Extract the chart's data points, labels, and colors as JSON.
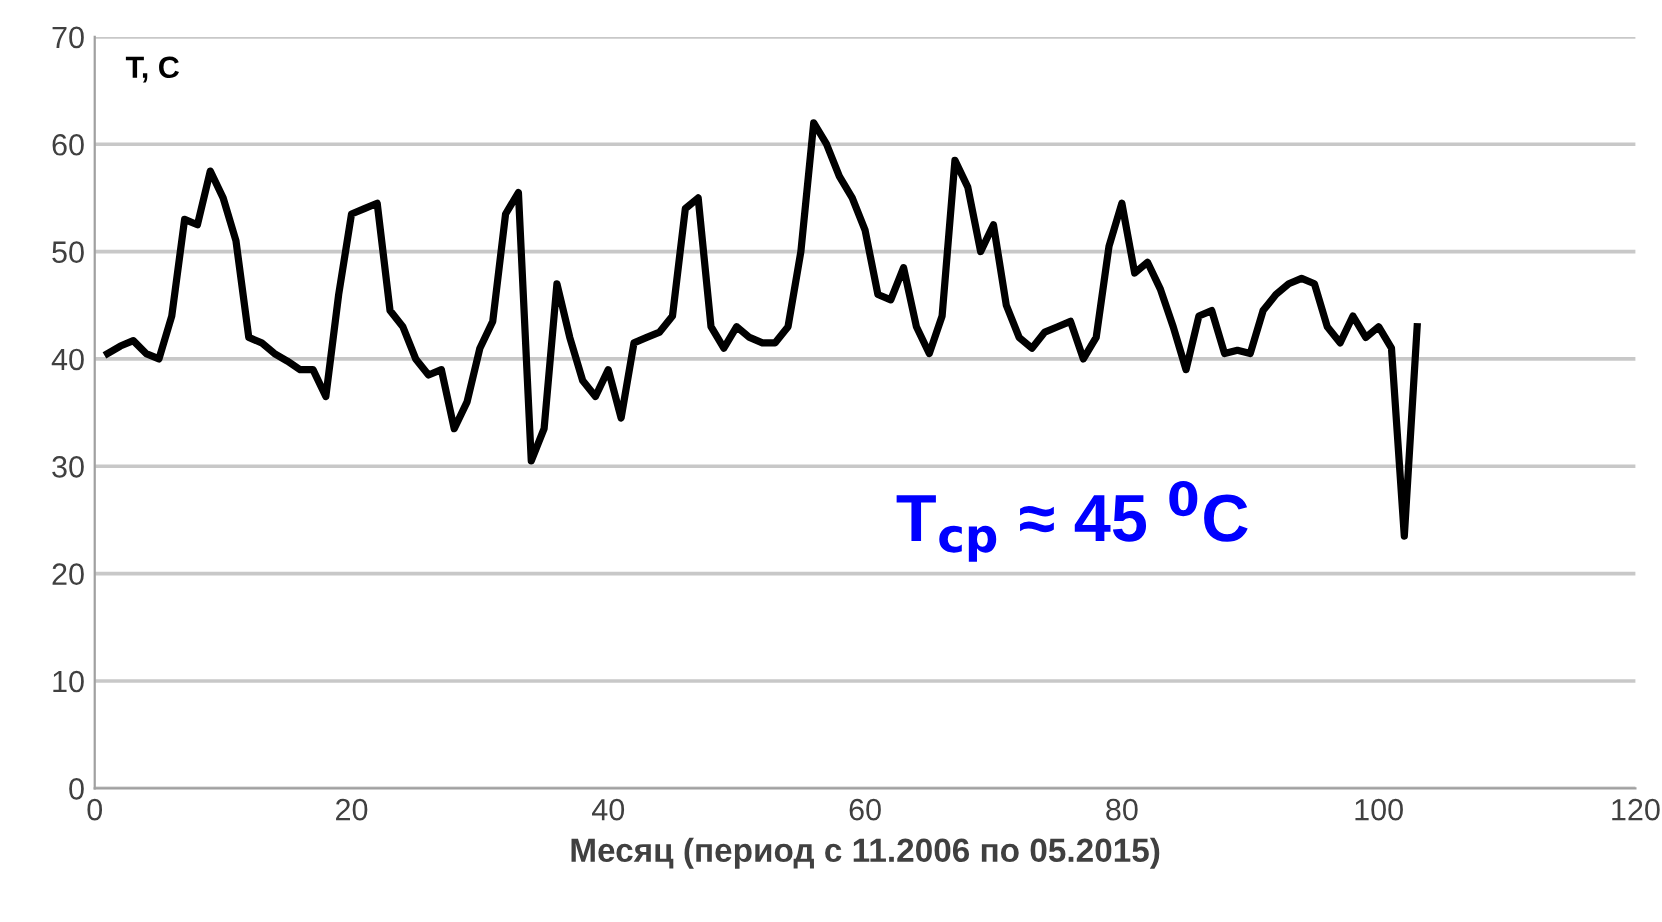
{
  "chart_data": {
    "type": "line",
    "xlabel": "Месяц (период с 11.2006 по 05.2015)",
    "ylabel": "T, C",
    "annotations": [
      "T$_{cp}$ ≈ 45 $^{0}$C"
    ],
    "x": [
      1,
      2,
      3,
      4,
      5,
      6,
      7,
      8,
      9,
      10,
      11,
      12,
      13,
      14,
      15,
      16,
      17,
      18,
      19,
      20,
      21,
      22,
      23,
      24,
      25,
      26,
      27,
      28,
      29,
      30,
      31,
      32,
      33,
      34,
      35,
      36,
      37,
      38,
      39,
      40,
      41,
      42,
      43,
      44,
      45,
      46,
      47,
      48,
      49,
      50,
      51,
      52,
      53,
      54,
      55,
      56,
      57,
      58,
      59,
      60,
      61,
      62,
      63,
      64,
      65,
      66,
      67,
      68,
      69,
      70,
      71,
      72,
      73,
      74,
      75,
      76,
      77,
      78,
      79,
      80,
      81,
      82,
      83,
      84,
      85,
      86,
      87,
      88,
      89,
      90,
      91,
      92,
      93,
      94,
      95,
      96,
      97,
      98,
      99,
      100,
      101,
      102,
      103
    ],
    "series": [
      {
        "color": "#000000",
        "values": [
          40.5,
          41.2,
          41.7,
          40.5,
          40,
          44,
          53,
          52.5,
          57.5,
          55,
          51,
          42,
          41.5,
          40.5,
          39.8,
          39,
          39,
          36.5,
          46,
          53.5,
          54,
          54.5,
          44.5,
          43,
          40,
          38.5,
          39,
          33.5,
          36,
          41,
          43.5,
          53.5,
          55.5,
          30.5,
          33.5,
          47,
          42,
          38,
          36.5,
          39,
          34.5,
          41.5,
          42,
          42.5,
          44,
          54,
          55,
          43,
          41,
          43,
          42,
          41.5,
          41.5,
          43,
          50,
          62,
          60,
          57,
          55,
          52,
          46,
          45.5,
          48.5,
          43,
          40.5,
          44,
          58.5,
          56,
          50,
          52.5,
          45,
          42,
          41,
          42.5,
          43,
          43.5,
          40,
          42,
          50.5,
          54.5,
          48,
          49,
          46.5,
          43,
          39,
          44,
          44.5,
          40.5,
          40.8,
          40.5,
          44.5,
          46,
          47,
          47.5,
          47,
          43,
          41.5,
          44,
          42,
          43,
          41,
          23.5,
          43
        ]
      }
    ],
    "xlim": [
      0,
      120
    ],
    "ylim": [
      0,
      70
    ],
    "xticks": [
      0,
      20,
      40,
      60,
      80,
      100,
      120
    ],
    "yticks": [
      0,
      10,
      20,
      30,
      40,
      50,
      60,
      70
    ],
    "grid": "y",
    "legend": false,
    "marker": "none",
    "line_style": "solid"
  }
}
